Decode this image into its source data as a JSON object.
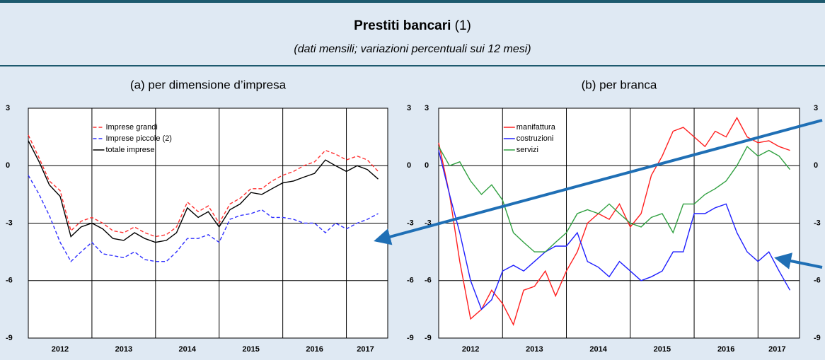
{
  "header": {
    "title": "Prestiti bancari",
    "title_note": "(1)",
    "subtitle": "(dati mensili; variazioni percentuali sui 12 mesi)"
  },
  "chart_data": [
    {
      "type": "line",
      "title": "(a) per dimensione d’impresa",
      "x": [
        2012,
        2012.17,
        2012.33,
        2012.5,
        2012.67,
        2012.83,
        2013,
        2013.17,
        2013.33,
        2013.5,
        2013.67,
        2013.83,
        2014,
        2014.17,
        2014.33,
        2014.5,
        2014.67,
        2014.83,
        2015,
        2015.17,
        2015.33,
        2015.5,
        2015.67,
        2015.83,
        2016,
        2016.17,
        2016.33,
        2016.5,
        2016.67,
        2016.83,
        2017,
        2017.17,
        2017.33,
        2017.5
      ],
      "series": [
        {
          "name": "Imprese grandi",
          "color": "#ff3030",
          "dash": true,
          "values": [
            1.6,
            0.4,
            -0.8,
            -1.3,
            -3.4,
            -2.9,
            -2.7,
            -3.0,
            -3.4,
            -3.5,
            -3.2,
            -3.5,
            -3.7,
            -3.6,
            -3.2,
            -1.9,
            -2.4,
            -2.1,
            -3.0,
            -2.0,
            -1.7,
            -1.2,
            -1.2,
            -0.8,
            -0.5,
            -0.3,
            0.0,
            0.2,
            0.8,
            0.6,
            0.3,
            0.5,
            0.3,
            -0.3
          ]
        },
        {
          "name": "Imprese piccole (2)",
          "color": "#3030ff",
          "dash": true,
          "values": [
            -0.5,
            -1.5,
            -2.6,
            -4.0,
            -5.0,
            -4.5,
            -4.0,
            -4.6,
            -4.7,
            -4.8,
            -4.5,
            -4.9,
            -5.0,
            -5.0,
            -4.5,
            -3.8,
            -3.8,
            -3.6,
            -4.0,
            -2.8,
            -2.6,
            -2.5,
            -2.3,
            -2.7,
            -2.7,
            -2.8,
            -3.0,
            -3.0,
            -3.5,
            -3.0,
            -3.3,
            -3.0,
            -2.8,
            -2.5
          ]
        },
        {
          "name": "totale imprese",
          "color": "#000000",
          "dash": false,
          "values": [
            1.3,
            0.2,
            -1.0,
            -1.6,
            -3.7,
            -3.2,
            -3.0,
            -3.3,
            -3.8,
            -3.9,
            -3.5,
            -3.8,
            -4.0,
            -3.9,
            -3.5,
            -2.2,
            -2.7,
            -2.4,
            -3.2,
            -2.3,
            -2.0,
            -1.4,
            -1.5,
            -1.2,
            -0.9,
            -0.8,
            -0.6,
            -0.4,
            0.3,
            0.0,
            -0.3,
            0.0,
            -0.2,
            -0.7
          ]
        }
      ],
      "xlim": [
        2012,
        2017.65
      ],
      "xticks": [
        {
          "value": 2012.5,
          "label": "2012"
        },
        {
          "value": 2013.5,
          "label": "2013"
        },
        {
          "value": 2014.5,
          "label": "2014"
        },
        {
          "value": 2015.5,
          "label": "2015"
        },
        {
          "value": 2016.5,
          "label": "2016"
        },
        {
          "value": 2017.3,
          "label": "2017"
        }
      ],
      "xgrid": [
        2013,
        2014,
        2015,
        2016,
        2017
      ],
      "ylim": [
        -9,
        3
      ],
      "yticks": [
        -9,
        -6,
        -3,
        0,
        3
      ],
      "grid": true,
      "legend": "upper left"
    },
    {
      "type": "line",
      "title": "(b) per branca",
      "x": [
        2012,
        2012.17,
        2012.33,
        2012.5,
        2012.67,
        2012.83,
        2013,
        2013.17,
        2013.33,
        2013.5,
        2013.67,
        2013.83,
        2014,
        2014.17,
        2014.33,
        2014.5,
        2014.67,
        2014.83,
        2015,
        2015.17,
        2015.33,
        2015.5,
        2015.67,
        2015.83,
        2016,
        2016.17,
        2016.33,
        2016.5,
        2016.67,
        2016.83,
        2017,
        2017.17,
        2017.33,
        2017.5
      ],
      "series": [
        {
          "name": "manifattura",
          "color": "#ff2020",
          "dash": false,
          "values": [
            1.2,
            -1.5,
            -5.0,
            -8.0,
            -7.5,
            -6.5,
            -7.2,
            -8.3,
            -6.5,
            -6.3,
            -5.5,
            -6.8,
            -5.5,
            -4.5,
            -3.0,
            -2.5,
            -2.8,
            -2.0,
            -3.2,
            -2.5,
            -0.5,
            0.5,
            1.8,
            2.0,
            1.5,
            1.0,
            1.8,
            1.5,
            2.5,
            1.5,
            1.2,
            1.3,
            1.0,
            0.8
          ]
        },
        {
          "name": "costruzioni",
          "color": "#2020ff",
          "dash": false,
          "values": [
            0.8,
            -1.5,
            -3.5,
            -6.0,
            -7.5,
            -7.0,
            -5.5,
            -5.2,
            -5.5,
            -5.0,
            -4.5,
            -4.2,
            -4.2,
            -3.5,
            -5.0,
            -5.3,
            -5.8,
            -5.0,
            -5.5,
            -6.0,
            -5.8,
            -5.5,
            -4.5,
            -4.5,
            -2.5,
            -2.5,
            -2.2,
            -2.0,
            -3.5,
            -4.5,
            -5.0,
            -4.5,
            -5.5,
            -6.5
          ]
        },
        {
          "name": "servizi",
          "color": "#30a040",
          "dash": false,
          "values": [
            1.0,
            0.0,
            0.2,
            -0.8,
            -1.5,
            -1.0,
            -1.8,
            -3.5,
            -4.0,
            -4.5,
            -4.5,
            -4.0,
            -3.5,
            -2.5,
            -2.3,
            -2.5,
            -2.0,
            -2.5,
            -3.0,
            -3.2,
            -2.7,
            -2.5,
            -3.5,
            -2.0,
            -2.0,
            -1.5,
            -1.2,
            -0.8,
            0.0,
            1.0,
            0.5,
            0.8,
            0.5,
            -0.2
          ]
        }
      ],
      "xlim": [
        2012,
        2017.65
      ],
      "xticks": [
        {
          "value": 2012.5,
          "label": "2012"
        },
        {
          "value": 2013.5,
          "label": "2013"
        },
        {
          "value": 2014.5,
          "label": "2014"
        },
        {
          "value": 2015.5,
          "label": "2015"
        },
        {
          "value": 2016.5,
          "label": "2016"
        },
        {
          "value": 2017.3,
          "label": "2017"
        }
      ],
      "xgrid": [
        2013,
        2014,
        2015,
        2016,
        2017
      ],
      "ylim": [
        -9,
        3
      ],
      "yticks": [
        -9,
        -6,
        -3,
        0,
        3
      ],
      "grid": true,
      "legend": "upper left"
    }
  ]
}
